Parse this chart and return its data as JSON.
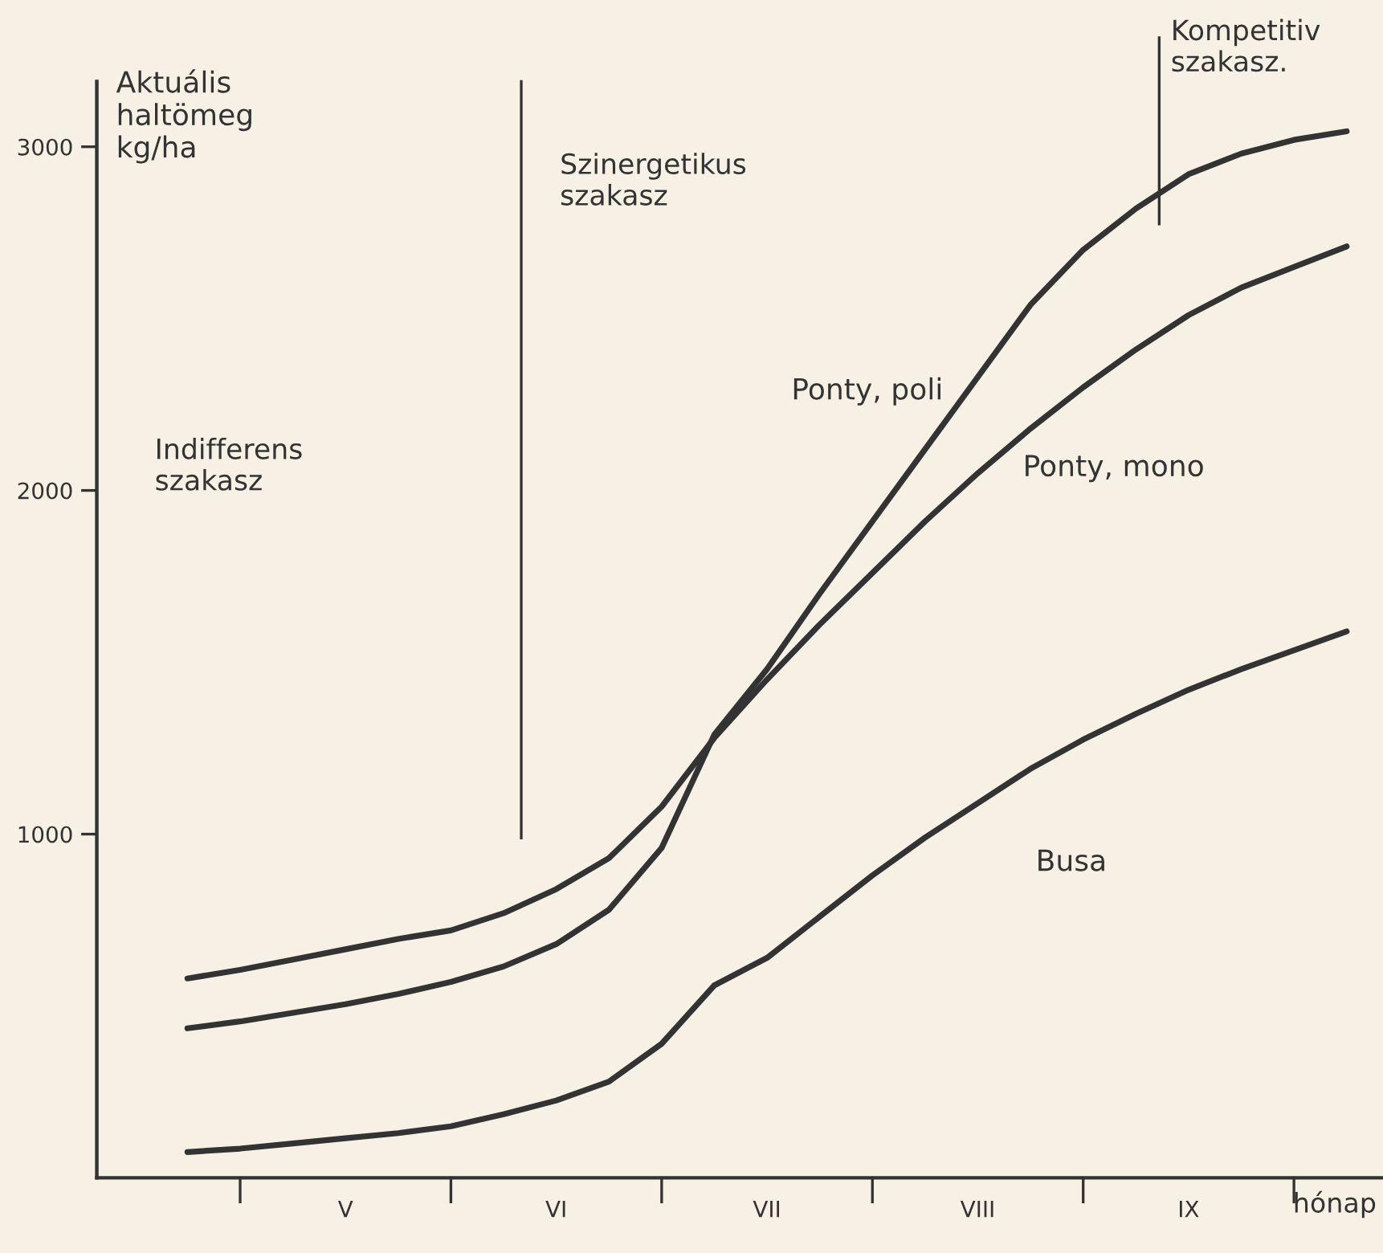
{
  "chart_data": {
    "type": "line",
    "ylabel": "Aktuális\nhaltömeg\nkg/ha",
    "xlabel": "hónap",
    "categories": [
      null,
      null,
      null,
      "V",
      null,
      null,
      null,
      "VI",
      null,
      null,
      null,
      "VII",
      null,
      null,
      null,
      "VIII",
      null,
      null,
      null,
      "IX",
      null,
      null,
      null
    ],
    "ylim": [
      0,
      3190
    ],
    "yticks": [
      1000,
      2000,
      3000
    ],
    "grid": false,
    "legend": false,
    "line_style": "solid",
    "marker": "none",
    "series": [
      {
        "name": "Ponty, poli",
        "color": "#333333",
        "values": [
          435,
          455,
          480,
          505,
          535,
          570,
          615,
          680,
          780,
          960,
          1290,
          1480,
          1700,
          1910,
          2120,
          2330,
          2540,
          2700,
          2820,
          2920,
          2980,
          3020,
          3045
        ]
      },
      {
        "name": "Ponty, mono",
        "color": "#333333",
        "values": [
          580,
          605,
          635,
          665,
          695,
          720,
          770,
          840,
          930,
          1080,
          1280,
          1450,
          1610,
          1760,
          1910,
          2050,
          2180,
          2300,
          2410,
          2510,
          2590,
          2650,
          2710
        ]
      },
      {
        "name": "Busa",
        "color": "#333333",
        "values": [
          75,
          85,
          100,
          115,
          130,
          150,
          185,
          225,
          280,
          390,
          560,
          640,
          760,
          880,
          990,
          1090,
          1190,
          1275,
          1350,
          1420,
          1480,
          1535,
          1590
        ]
      }
    ],
    "annotations": [
      "Indifferens\nszakasz",
      "Szinergetikus\nszakasz",
      "Kompetitiv\nszakasz."
    ]
  }
}
